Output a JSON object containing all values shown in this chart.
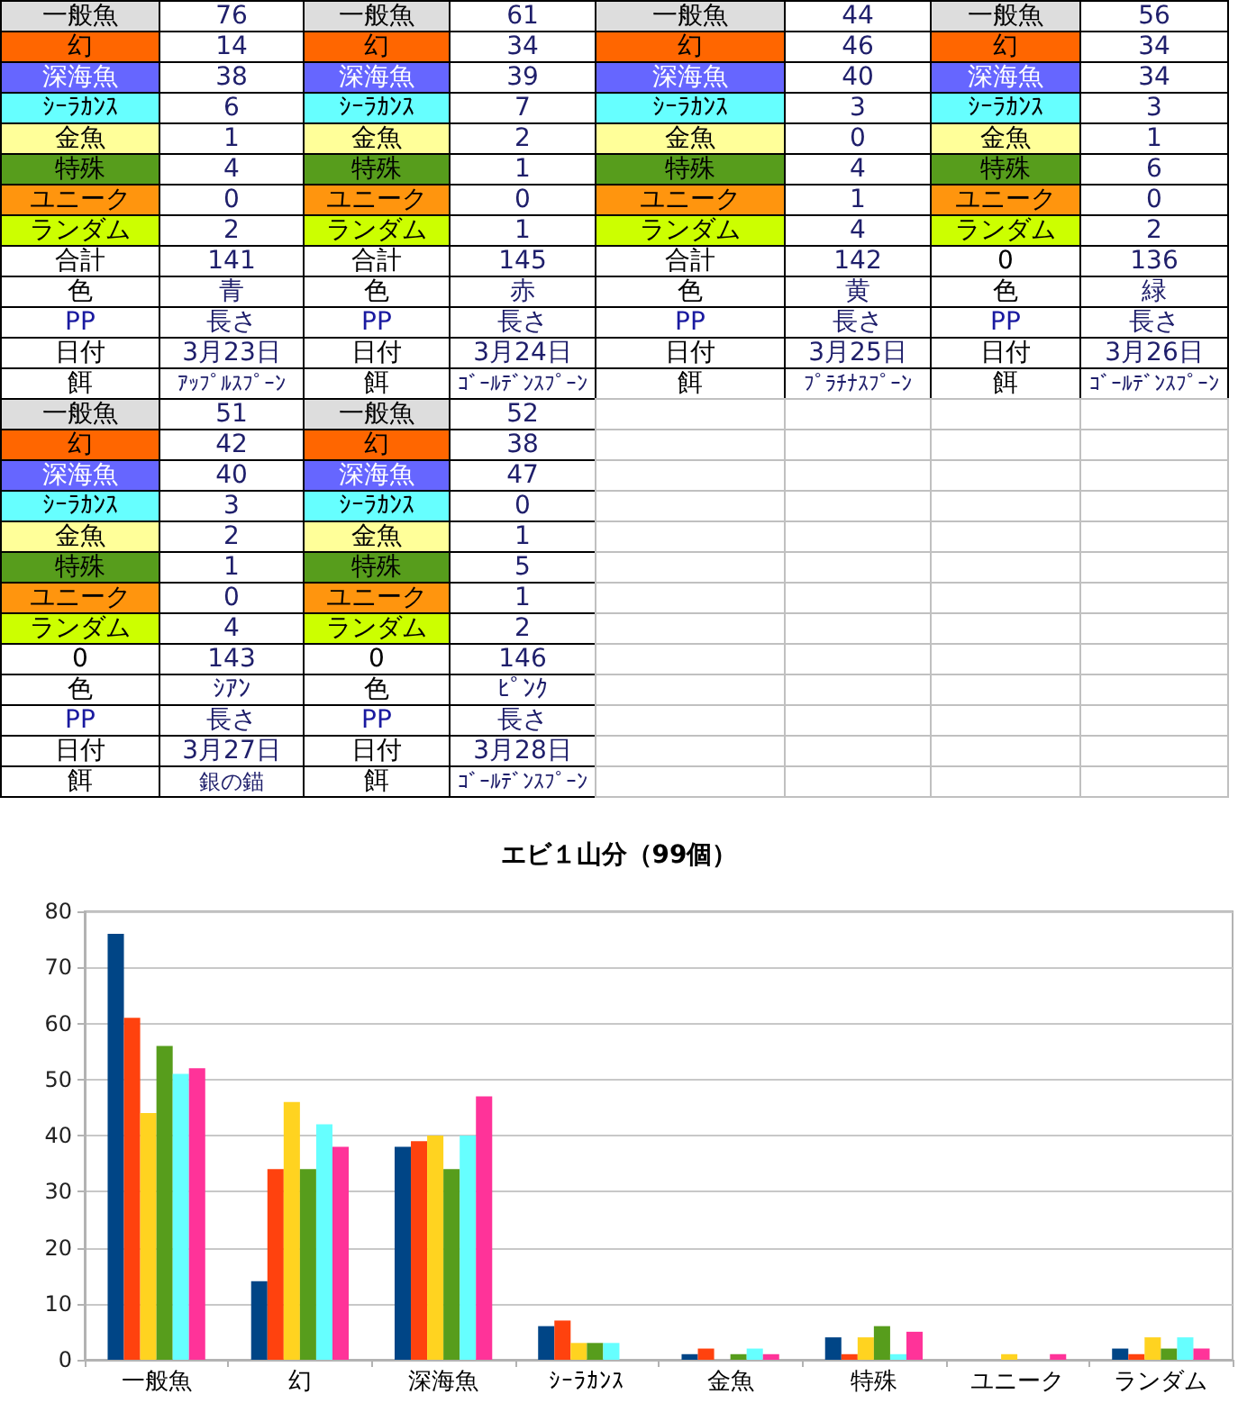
{
  "chart_data": {
    "type": "bar",
    "title": "エビ１山分（99個）",
    "categories": [
      "一般魚",
      "幻",
      "深海魚",
      "ｼｰﾗｶﾝｽ",
      "金魚",
      "特殊",
      "ユニーク",
      "ランダム"
    ],
    "series": [
      {
        "color": "#004586",
        "values": [
          76,
          14,
          38,
          6,
          1,
          4,
          0,
          2
        ]
      },
      {
        "color": "#ff420e",
        "values": [
          61,
          34,
          39,
          7,
          2,
          1,
          0,
          1
        ]
      },
      {
        "color": "#ffd320",
        "values": [
          44,
          46,
          40,
          3,
          0,
          4,
          1,
          4
        ]
      },
      {
        "color": "#579d1c",
        "values": [
          56,
          34,
          34,
          3,
          1,
          6,
          0,
          2
        ]
      },
      {
        "color": "#66ffff",
        "values": [
          51,
          42,
          40,
          3,
          2,
          1,
          0,
          4
        ]
      },
      {
        "color": "#ff3399",
        "values": [
          52,
          38,
          47,
          0,
          1,
          5,
          1,
          2
        ]
      }
    ],
    "ylim": [
      0,
      80
    ],
    "yticks": [
      0,
      10,
      20,
      30,
      40,
      50,
      60,
      70,
      80
    ],
    "grid": "y",
    "annotations": [
      "76",
      "14",
      "38",
      "6",
      "1",
      "4",
      "0",
      "2",
      "合計",
      "141",
      "色",
      "青",
      "PP",
      "長さ",
      "日付",
      "3月23日",
      "餌",
      "ｱｯﾌﾟﾙｽﾌﾟｰﾝ",
      "61",
      "34",
      "39",
      "7",
      "2",
      "1",
      "0",
      "1",
      "合計",
      "145",
      "色",
      "赤",
      "PP",
      "長さ",
      "日付",
      "3月24日",
      "餌",
      "ｺﾞｰﾙﾃﾞﾝｽﾌﾟｰﾝ",
      "44",
      "46",
      "40",
      "3",
      "0",
      "4",
      "1",
      "4",
      "合計",
      "142",
      "色",
      "黄",
      "PP",
      "長さ",
      "日付",
      "3月25日",
      "餌",
      "ﾌﾟﾗﾁﾅｽﾌﾟｰﾝ",
      "56",
      "34",
      "34",
      "3",
      "1",
      "6",
      "0",
      "2",
      "0",
      "136",
      "色",
      "緑",
      "PP",
      "長さ",
      "日付",
      "3月26日",
      "餌",
      "ｺﾞｰﾙﾃﾞﾝｽﾌﾟｰﾝ",
      "51",
      "42",
      "40",
      "3",
      "2",
      "1",
      "0",
      "4",
      "0",
      "143",
      "色",
      "ｼｱﾝ",
      "PP",
      "長さ",
      "日付",
      "3月27日",
      "餌",
      "銀の錨",
      "52",
      "38",
      "47",
      "0",
      "1",
      "5",
      "1",
      "2",
      "0",
      "146",
      "色",
      "ﾋﾟﾝｸ",
      "PP",
      "長さ",
      "日付",
      "3月28日",
      "餌",
      "ｺﾞｰﾙﾃﾞﾝｽﾌﾟｰﾝ"
    ]
  }
}
